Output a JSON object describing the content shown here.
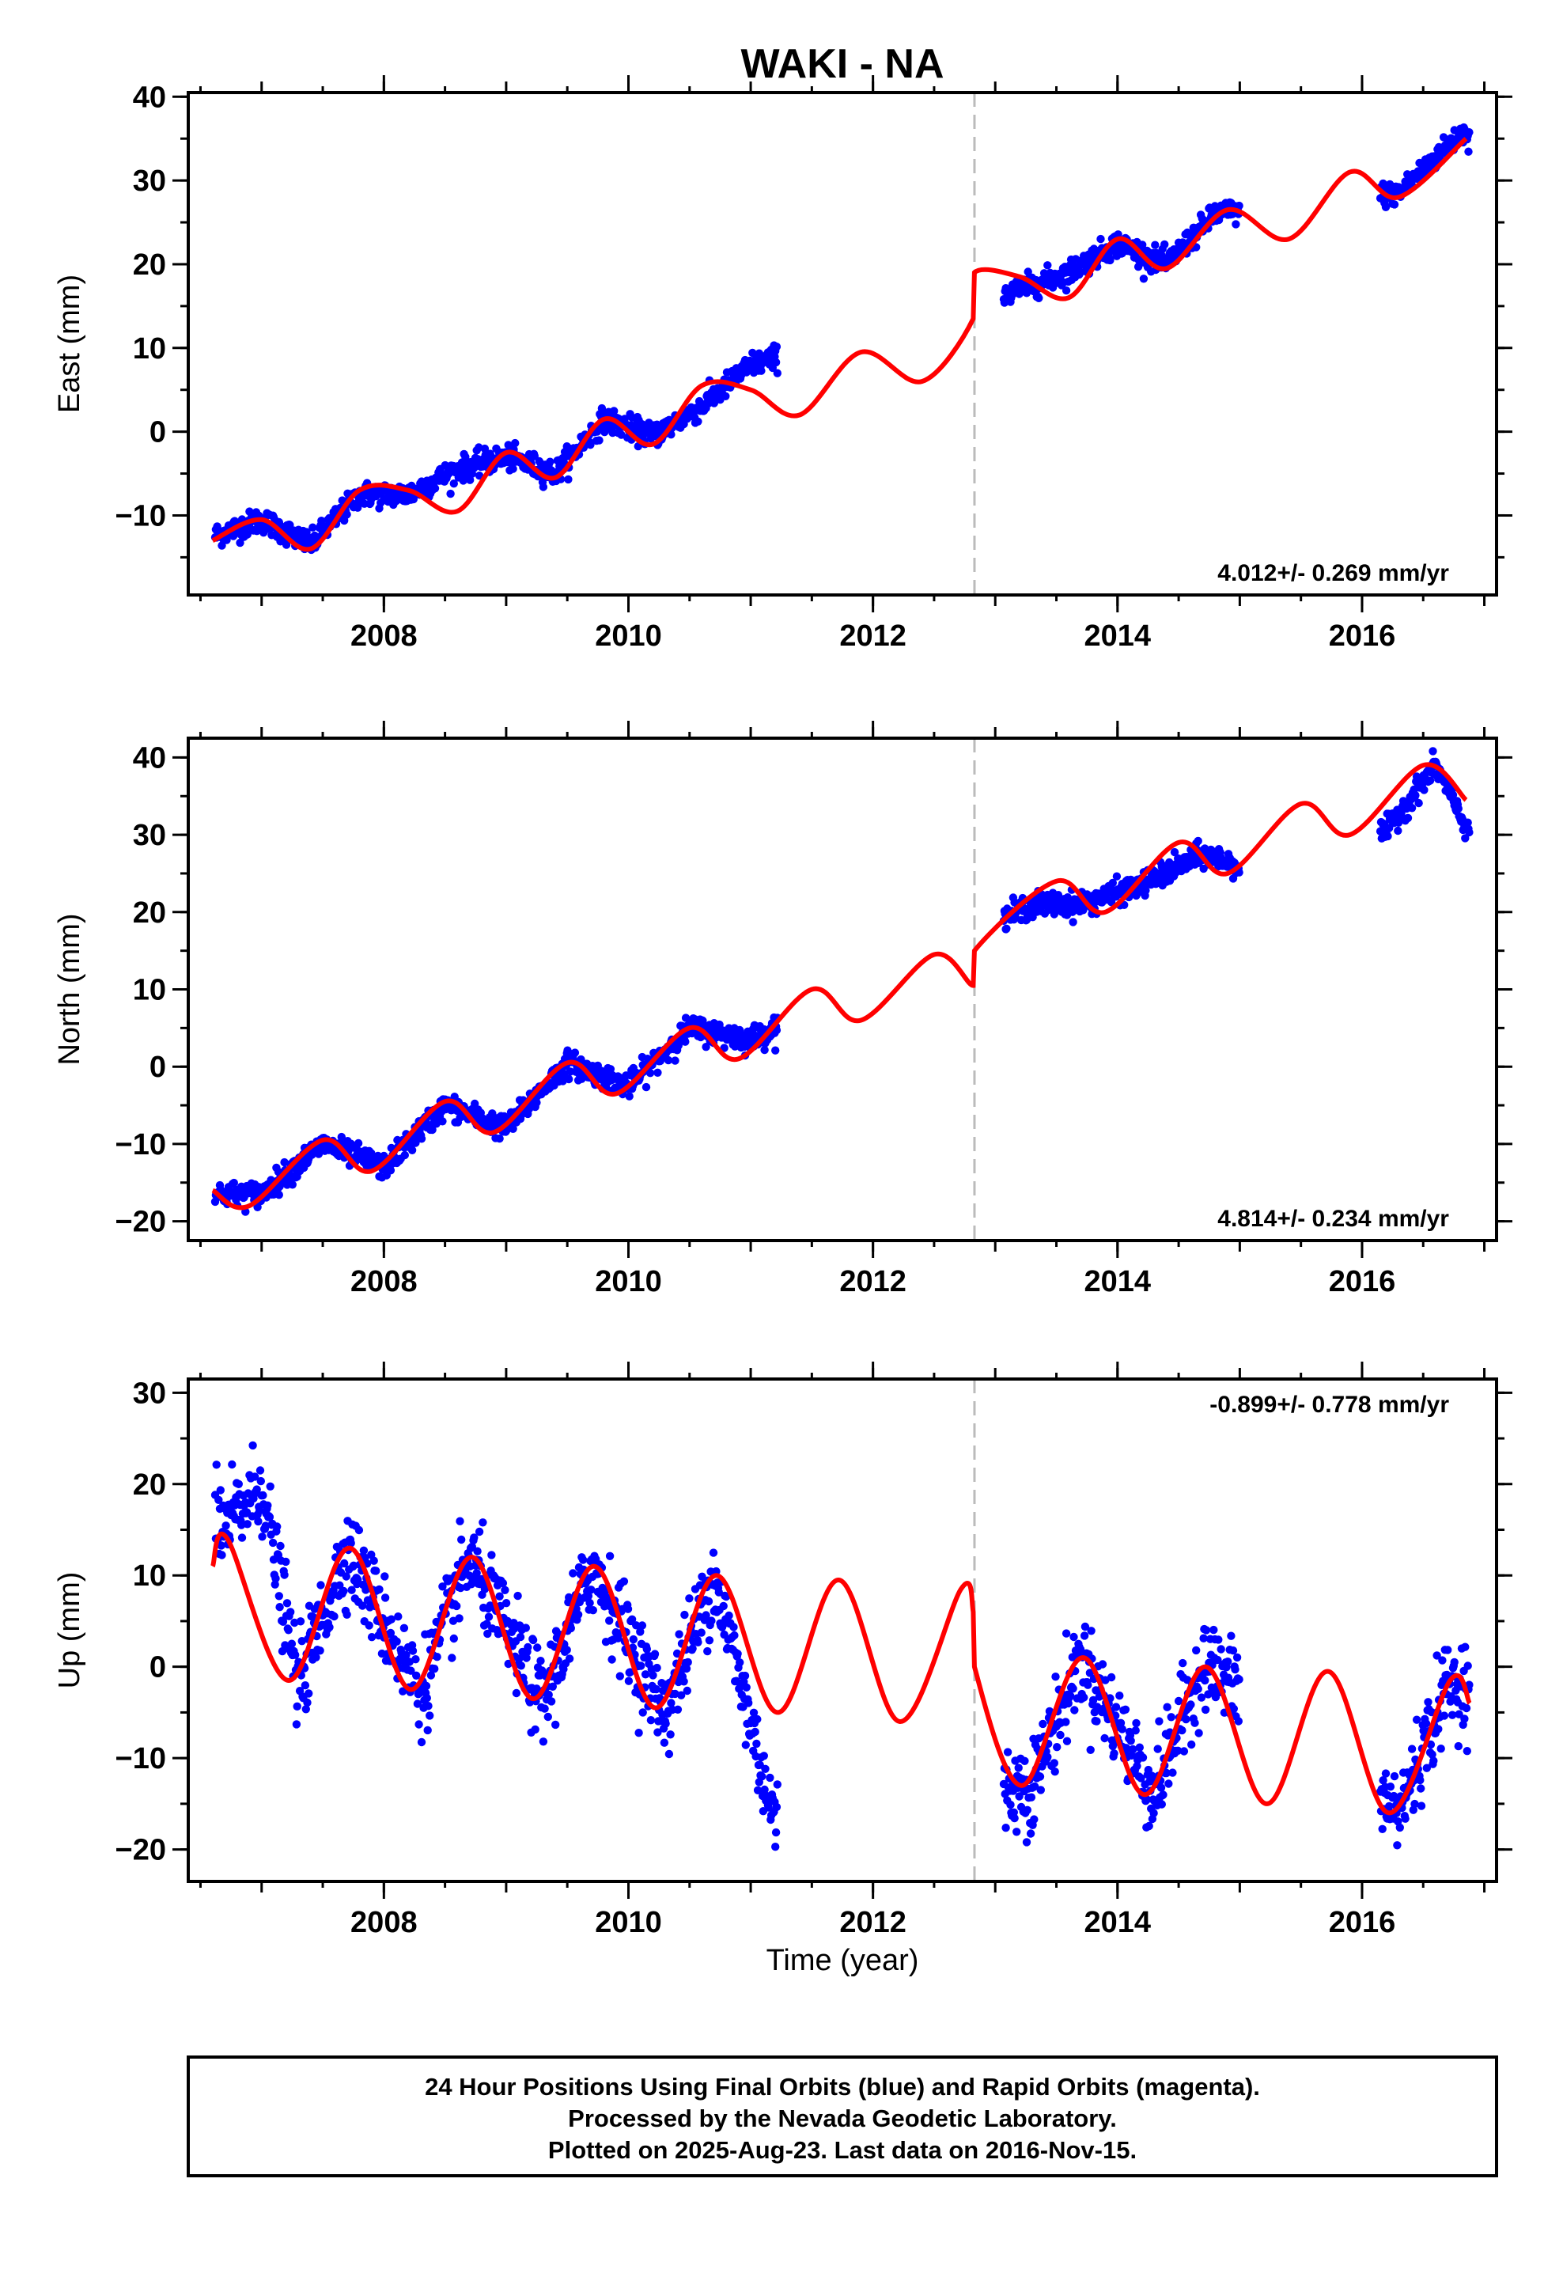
{
  "chart_title": "WAKI - NA",
  "x_axis_label": "Time (year)",
  "footer": {
    "lines": [
      "24 Hour Positions Using Final Orbits (blue) and Rapid Orbits (magenta).",
      "Processed by the Nevada Geodetic Laboratory.",
      "Plotted on 2025-Aug-23. Last data on 2016-Nov-15."
    ]
  },
  "colors": {
    "data_points": "#0000ff",
    "model_curve": "#ff0000",
    "break_line": "#bbbbbb",
    "frame": "#000000"
  },
  "chart_data": [
    {
      "type": "scatter",
      "title": "WAKI - NA",
      "ylabel": "East (mm)",
      "xlabel": "",
      "xlim": [
        2006.4,
        2017.1
      ],
      "ylim": [
        -19.5,
        40.5
      ],
      "x_ticks": [
        2008,
        2010,
        2012,
        2014,
        2016
      ],
      "y_ticks": [
        -10,
        0,
        10,
        20,
        30,
        40
      ],
      "y_tick_labels": [
        "−10",
        "0",
        "10",
        "20",
        "30",
        "40"
      ],
      "rate_text": "4.012+/- 0.269 mm/yr",
      "rate_position": "bottom-right",
      "equipment_change_year": 2012.83,
      "data_segments": [
        [
          2006.62,
          2011.22
        ],
        [
          2013.07,
          2015.0
        ],
        [
          2016.15,
          2016.88
        ]
      ],
      "series": [
        {
          "name": "Final Orbits (blue)",
          "color": "#0000ff",
          "trend_mm_per_yr": 4.0,
          "scatter_mm": 1.2,
          "x": [
            2006.6,
            2007.0,
            2007.4,
            2007.8,
            2008.2,
            2008.6,
            2009.0,
            2009.4,
            2009.8,
            2010.2,
            2010.6,
            2011.0,
            2013.2,
            2013.6,
            2014.0,
            2014.4,
            2014.8,
            2016.3,
            2016.8
          ],
          "y": [
            -12.5,
            -10.5,
            -13.5,
            -7.5,
            -7.5,
            -4.5,
            -3.0,
            -5.0,
            1.5,
            -0.5,
            3.0,
            8.0,
            17.0,
            19.0,
            22.5,
            20.0,
            26.0,
            28.5,
            35.5
          ]
        },
        {
          "name": "Model fit",
          "color": "#ff0000",
          "x": [
            2006.6,
            2007.0,
            2007.4,
            2007.8,
            2008.2,
            2008.6,
            2009.0,
            2009.4,
            2009.8,
            2010.2,
            2010.6,
            2011.0,
            2011.4,
            2011.9,
            2012.4,
            2012.82,
            2012.83,
            2013.2,
            2013.6,
            2014.0,
            2014.4,
            2014.9,
            2015.4,
            2015.9,
            2016.3,
            2016.85
          ],
          "y": [
            -13.0,
            -10.5,
            -14.0,
            -7.0,
            -7.0,
            -9.5,
            -2.5,
            -5.5,
            1.5,
            -1.5,
            5.5,
            5.0,
            2.0,
            9.5,
            6.0,
            13.5,
            19.0,
            18.5,
            16.0,
            23.0,
            19.5,
            26.5,
            23.0,
            31.0,
            28.0,
            35.0
          ]
        }
      ]
    },
    {
      "type": "scatter",
      "ylabel": "North (mm)",
      "xlabel": "",
      "xlim": [
        2006.4,
        2017.1
      ],
      "ylim": [
        -22.5,
        42.5
      ],
      "x_ticks": [
        2008,
        2010,
        2012,
        2014,
        2016
      ],
      "y_ticks": [
        -20,
        -10,
        0,
        10,
        20,
        30,
        40
      ],
      "y_tick_labels": [
        "−20",
        "−10",
        "0",
        "10",
        "20",
        "30",
        "40"
      ],
      "rate_text": "4.814+/- 0.234 mm/yr",
      "rate_position": "bottom-right",
      "equipment_change_year": 2012.83,
      "data_segments": [
        [
          2006.62,
          2011.22
        ],
        [
          2013.07,
          2015.0
        ],
        [
          2016.15,
          2016.88
        ]
      ],
      "series": [
        {
          "name": "Final Orbits (blue)",
          "color": "#0000ff",
          "trend_mm_per_yr": 4.8,
          "scatter_mm": 1.3,
          "x": [
            2006.6,
            2007.0,
            2007.5,
            2008.0,
            2008.5,
            2009.0,
            2009.5,
            2010.0,
            2010.5,
            2011.0,
            2013.3,
            2013.7,
            2014.2,
            2014.7,
            2015.0,
            2016.2,
            2016.6,
            2016.85
          ],
          "y": [
            -16.5,
            -16.5,
            -10.0,
            -13.0,
            -5.0,
            -8.0,
            0.5,
            -2.5,
            5.0,
            3.5,
            21.0,
            21.0,
            23.5,
            27.5,
            26.0,
            30.5,
            39.0,
            31.0
          ]
        },
        {
          "name": "Model fit",
          "color": "#ff0000",
          "x": [
            2006.6,
            2006.9,
            2007.5,
            2007.9,
            2008.5,
            2008.9,
            2009.5,
            2009.9,
            2010.5,
            2010.9,
            2011.5,
            2011.9,
            2012.5,
            2012.82,
            2012.83,
            2013.5,
            2013.9,
            2014.5,
            2014.9,
            2015.5,
            2015.9,
            2016.5,
            2016.85
          ],
          "y": [
            -16.0,
            -18.0,
            -9.5,
            -13.5,
            -4.5,
            -8.5,
            0.5,
            -3.5,
            5.0,
            1.0,
            10.0,
            6.0,
            14.5,
            10.5,
            15.0,
            24.0,
            20.0,
            29.0,
            25.0,
            34.0,
            30.0,
            39.0,
            34.5
          ]
        }
      ]
    },
    {
      "type": "scatter",
      "ylabel": "Up (mm)",
      "xlabel": "Time (year)",
      "xlim": [
        2006.4,
        2017.1
      ],
      "ylim": [
        -23.5,
        31.5
      ],
      "x_ticks": [
        2008,
        2010,
        2012,
        2014,
        2016
      ],
      "y_ticks": [
        -20,
        -10,
        0,
        10,
        20,
        30
      ],
      "y_tick_labels": [
        "−20",
        "−10",
        "0",
        "10",
        "20",
        "30"
      ],
      "rate_text": "-0.899+/- 0.778 mm/yr",
      "rate_position": "top-right",
      "equipment_change_year": 2012.83,
      "data_segments": [
        [
          2006.62,
          2011.22
        ],
        [
          2013.07,
          2015.0
        ],
        [
          2016.15,
          2016.88
        ]
      ],
      "series": [
        {
          "name": "Final Orbits (blue)",
          "color": "#0000ff",
          "trend_mm_per_yr": -0.9,
          "scatter_mm": 4.0,
          "x": [
            2006.7,
            2007.0,
            2007.3,
            2007.7,
            2008.3,
            2008.7,
            2009.3,
            2009.7,
            2010.3,
            2010.7,
            2011.2,
            2013.3,
            2013.7,
            2014.3,
            2014.7,
            2016.3,
            2016.7
          ],
          "y": [
            15.0,
            20.0,
            -2.0,
            13.0,
            -3.0,
            12.0,
            -4.0,
            11.0,
            -5.0,
            10.0,
            -17.0,
            -13.0,
            1.0,
            -14.0,
            0.5,
            -16.0,
            -2.0
          ]
        },
        {
          "name": "Model fit",
          "color": "#ff0000",
          "x": [
            2006.6,
            2006.72,
            2007.22,
            2007.72,
            2008.22,
            2008.72,
            2009.22,
            2009.72,
            2010.22,
            2010.72,
            2011.22,
            2011.72,
            2012.22,
            2012.72,
            2012.82,
            2012.83,
            2013.22,
            2013.72,
            2014.22,
            2014.72,
            2015.22,
            2015.72,
            2016.22,
            2016.72,
            2016.88
          ],
          "y": [
            11.0,
            14.0,
            -1.5,
            13.0,
            -2.5,
            12.0,
            -3.5,
            11.0,
            -4.5,
            10.0,
            -5.0,
            9.5,
            -6.0,
            8.5,
            6.0,
            0.0,
            -13.0,
            1.0,
            -14.0,
            0.0,
            -15.0,
            -0.5,
            -16.0,
            -1.5,
            -4.0
          ]
        }
      ]
    }
  ]
}
